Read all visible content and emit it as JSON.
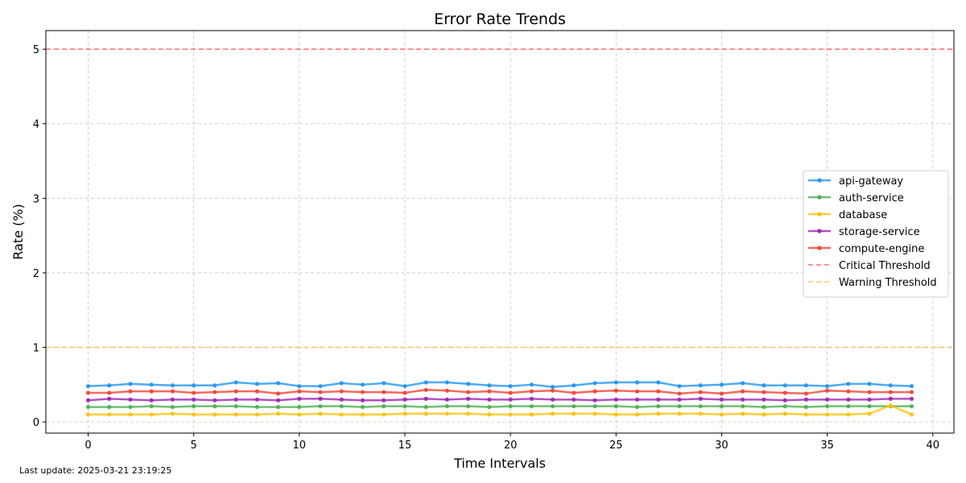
{
  "chart_data": {
    "type": "line",
    "title": "Error Rate Trends",
    "xlabel": "Time Intervals",
    "ylabel": "Rate (%)",
    "xlim": [
      -2,
      41
    ],
    "ylim": [
      -0.15,
      5.25
    ],
    "xticks": [
      0,
      5,
      10,
      15,
      20,
      25,
      30,
      35,
      40
    ],
    "yticks": [
      0,
      1,
      2,
      3,
      4,
      5
    ],
    "grid": true,
    "legend_position": "center-right",
    "x": [
      0,
      1,
      2,
      3,
      4,
      5,
      6,
      7,
      8,
      9,
      10,
      11,
      12,
      13,
      14,
      15,
      16,
      17,
      18,
      19,
      20,
      21,
      22,
      23,
      24,
      25,
      26,
      27,
      28,
      29,
      30,
      31,
      32,
      33,
      34,
      35,
      36,
      37,
      38,
      39
    ],
    "series": [
      {
        "name": "api-gateway",
        "color": "#2196f3",
        "values": [
          0.48,
          0.49,
          0.51,
          0.5,
          0.49,
          0.49,
          0.49,
          0.53,
          0.51,
          0.52,
          0.48,
          0.48,
          0.52,
          0.5,
          0.52,
          0.48,
          0.53,
          0.53,
          0.51,
          0.49,
          0.48,
          0.5,
          0.47,
          0.49,
          0.52,
          0.53,
          0.53,
          0.53,
          0.48,
          0.49,
          0.5,
          0.52,
          0.49,
          0.49,
          0.49,
          0.48,
          0.51,
          0.51,
          0.49,
          0.48
        ]
      },
      {
        "name": "auth-service",
        "color": "#4caf50",
        "values": [
          0.2,
          0.2,
          0.2,
          0.21,
          0.2,
          0.21,
          0.21,
          0.21,
          0.2,
          0.2,
          0.2,
          0.21,
          0.21,
          0.2,
          0.21,
          0.21,
          0.2,
          0.21,
          0.21,
          0.2,
          0.21,
          0.21,
          0.21,
          0.21,
          0.21,
          0.21,
          0.2,
          0.21,
          0.21,
          0.21,
          0.21,
          0.21,
          0.2,
          0.21,
          0.2,
          0.21,
          0.21,
          0.21,
          0.21,
          0.21
        ]
      },
      {
        "name": "database",
        "color": "#ffc107",
        "values": [
          0.1,
          0.1,
          0.1,
          0.1,
          0.11,
          0.1,
          0.1,
          0.1,
          0.1,
          0.11,
          0.1,
          0.11,
          0.1,
          0.1,
          0.1,
          0.11,
          0.11,
          0.11,
          0.11,
          0.1,
          0.1,
          0.1,
          0.11,
          0.11,
          0.11,
          0.1,
          0.1,
          0.11,
          0.11,
          0.11,
          0.1,
          0.11,
          0.1,
          0.11,
          0.1,
          0.1,
          0.1,
          0.11,
          0.22,
          0.1
        ]
      },
      {
        "name": "storage-service",
        "color": "#9c27b0",
        "values": [
          0.29,
          0.31,
          0.3,
          0.29,
          0.3,
          0.3,
          0.29,
          0.3,
          0.3,
          0.29,
          0.31,
          0.31,
          0.3,
          0.29,
          0.29,
          0.3,
          0.31,
          0.3,
          0.31,
          0.3,
          0.3,
          0.31,
          0.3,
          0.3,
          0.29,
          0.3,
          0.3,
          0.3,
          0.3,
          0.31,
          0.3,
          0.3,
          0.3,
          0.29,
          0.3,
          0.3,
          0.3,
          0.3,
          0.31,
          0.31
        ]
      },
      {
        "name": "compute-engine",
        "color": "#f44336",
        "values": [
          0.39,
          0.39,
          0.41,
          0.41,
          0.41,
          0.39,
          0.4,
          0.41,
          0.41,
          0.38,
          0.41,
          0.4,
          0.41,
          0.4,
          0.4,
          0.39,
          0.43,
          0.42,
          0.4,
          0.41,
          0.39,
          0.41,
          0.42,
          0.39,
          0.41,
          0.42,
          0.41,
          0.41,
          0.38,
          0.4,
          0.38,
          0.41,
          0.4,
          0.39,
          0.38,
          0.42,
          0.41,
          0.4,
          0.4,
          0.4
        ]
      }
    ],
    "thresholds": [
      {
        "name": "Critical Threshold",
        "value": 5,
        "color": "#ff5252"
      },
      {
        "name": "Warning Threshold",
        "value": 1,
        "color": "#ffb74d"
      }
    ]
  },
  "footer": {
    "last_update": "Last update: 2025-03-21 23:19:25"
  }
}
